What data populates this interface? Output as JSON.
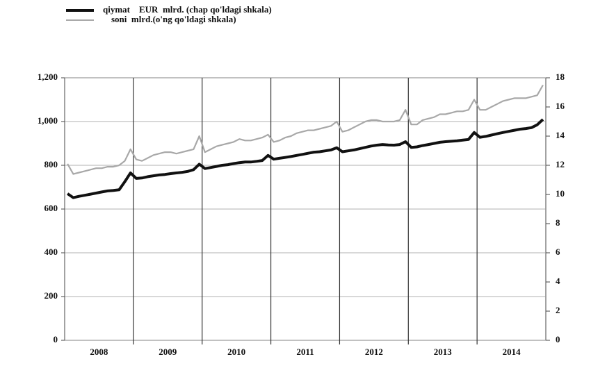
{
  "chart_data": {
    "type": "line",
    "categories": [
      null,
      null,
      null,
      null,
      null,
      null,
      "2008",
      null,
      null,
      null,
      null,
      null,
      null,
      null,
      null,
      null,
      null,
      null,
      "2009",
      null,
      null,
      null,
      null,
      null,
      null,
      null,
      null,
      null,
      null,
      null,
      "2010",
      null,
      null,
      null,
      null,
      null,
      null,
      null,
      null,
      null,
      null,
      null,
      "2011",
      null,
      null,
      null,
      null,
      null,
      null,
      null,
      null,
      null,
      null,
      null,
      "2012",
      null,
      null,
      null,
      null,
      null,
      null,
      null,
      null,
      null,
      null,
      null,
      "2013",
      null,
      null,
      null,
      null,
      null,
      null,
      null,
      null,
      null,
      null,
      null,
      "2014",
      null,
      null,
      null,
      null,
      null
    ],
    "series": [
      {
        "name": "qiymat    EUR  mlrd. (chap qo'ldagi shkala)",
        "color": "#111111",
        "values": [
          670,
          652,
          658,
          663,
          668,
          673,
          678,
          683,
          685,
          688,
          725,
          765,
          740,
          742,
          748,
          752,
          756,
          758,
          762,
          765,
          768,
          772,
          780,
          805,
          785,
          790,
          795,
          800,
          803,
          808,
          812,
          815,
          815,
          818,
          822,
          845,
          828,
          832,
          836,
          840,
          845,
          850,
          855,
          860,
          862,
          866,
          870,
          880,
          862,
          866,
          870,
          876,
          882,
          888,
          892,
          895,
          893,
          892,
          895,
          908,
          882,
          884,
          890,
          895,
          900,
          905,
          908,
          910,
          912,
          915,
          918,
          950,
          928,
          932,
          938,
          944,
          950,
          955,
          960,
          965,
          968,
          972,
          985,
          1010
        ]
      },
      {
        "name": "soni  mlrd.(o'ng qo'ldagi shkala)",
        "color": "#a8a8a8",
        "axis": "y2",
        "values": [
          12.1,
          11.4,
          11.5,
          11.6,
          11.7,
          11.8,
          11.8,
          11.9,
          11.9,
          12.0,
          12.3,
          13.1,
          12.4,
          12.3,
          12.5,
          12.7,
          12.8,
          12.9,
          12.9,
          12.8,
          12.9,
          13.0,
          13.1,
          14.0,
          12.9,
          13.1,
          13.3,
          13.4,
          13.5,
          13.6,
          13.8,
          13.7,
          13.7,
          13.8,
          13.9,
          14.1,
          13.6,
          13.7,
          13.9,
          14.0,
          14.2,
          14.3,
          14.4,
          14.4,
          14.5,
          14.6,
          14.7,
          15.0,
          14.3,
          14.4,
          14.6,
          14.8,
          15.0,
          15.1,
          15.1,
          15.0,
          15.0,
          15.0,
          15.1,
          15.8,
          14.8,
          14.8,
          15.1,
          15.2,
          15.3,
          15.5,
          15.5,
          15.6,
          15.7,
          15.7,
          15.8,
          16.5,
          15.8,
          15.8,
          16.0,
          16.2,
          16.4,
          16.5,
          16.6,
          16.6,
          16.6,
          16.7,
          16.8,
          17.5
        ]
      }
    ],
    "ylim": [
      0,
      1200
    ],
    "yticks": [
      0,
      200,
      400,
      600,
      800,
      {
        "value": 1000,
        "label": "1,000"
      },
      {
        "value": 1200,
        "label": "1,200"
      }
    ],
    "y2lim": [
      0,
      18
    ],
    "y2ticks": [
      0,
      2,
      4,
      6,
      8,
      10,
      12,
      14,
      16,
      18
    ],
    "grid": true
  }
}
